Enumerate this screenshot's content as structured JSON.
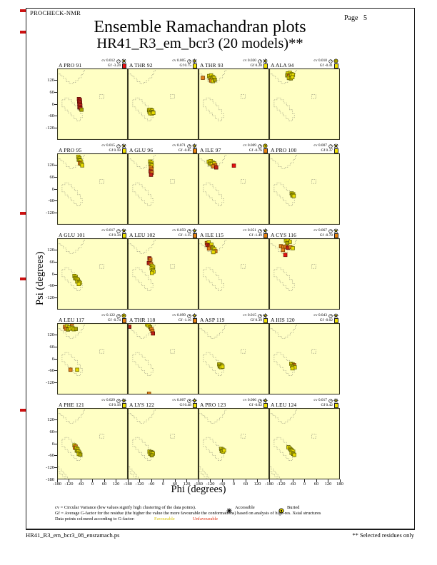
{
  "header": {
    "program": "PROCHECK-NMR",
    "page": "Page 5",
    "title": "Ensemble Ramachandran plots",
    "subtitle": "HR41_R3_em_bcr3 (20 models)**"
  },
  "axes": {
    "xlabel": "Phi (degrees)",
    "ylabel": "Psi (degrees)"
  },
  "legend": {
    "line1": "cv = Circular Variance (low values signify high clustering of the data points).",
    "accessible_label": "Accessible",
    "buried_label": "Buried",
    "line2": "Gf = Average G-factor for the residue (the higher the value the more favourable the conformations)  based on analysis of high-res. Xstal structures",
    "line3": "Data points coloured according to G-factor:",
    "favourable_label": "Favourable",
    "unfavourable_label": "Unfavourable"
  },
  "footer": {
    "filename": "HR41_R3_em_bcr3_08_ensramach.ps",
    "note": "** Selected residues only"
  },
  "chart_data": {
    "type": "scatter",
    "grid": {
      "rows": 5,
      "cols": 4
    },
    "xlim": [
      -180,
      180
    ],
    "ylim": [
      -180,
      180
    ],
    "cv_label": "cv",
    "gf_label": "Gf",
    "plot_bg": "#ffffc4",
    "point_colors": {
      "y": "#e6da00",
      "d": "#a9a400",
      "o": "#e2801a",
      "r": "#c22018",
      "R": "#e81010"
    },
    "marker_colors": {
      "yellow": "#f2e300",
      "orange": "#e8820e",
      "red": "#ee1111"
    },
    "y_tick_labels": [
      "120",
      "60",
      "0",
      "-60",
      "-120"
    ],
    "y_bottom_label": "-180",
    "x_tick_labels": [
      "-180",
      "-120",
      "-60",
      "0",
      "60",
      "120"
    ],
    "x_last_label": "180",
    "subplots": [
      {
        "label": "A PRO 91",
        "cv": "0.012",
        "gf": "-3.24",
        "access": "accessible",
        "gf_marker": "red",
        "points": [
          [
            -69,
            26,
            "r"
          ],
          [
            -64,
            21,
            "r"
          ],
          [
            -68,
            13,
            "r"
          ],
          [
            -63,
            7,
            "r"
          ],
          [
            -67,
            -1,
            "r"
          ],
          [
            -62,
            -7,
            "r"
          ],
          [
            -66,
            -15,
            "r"
          ],
          [
            -61,
            -21,
            "r"
          ],
          [
            -56,
            -28,
            "d"
          ]
        ]
      },
      {
        "label": "A THR 92",
        "cv": "0.005",
        "gf": "0.75",
        "access": "accessible",
        "gf_marker": "yellow",
        "points": [
          [
            -72,
            -30,
            "y"
          ],
          [
            -64,
            -28,
            "y"
          ],
          [
            -56,
            -32,
            "y"
          ],
          [
            -70,
            -38,
            "y"
          ],
          [
            -62,
            -38,
            "d"
          ],
          [
            -54,
            -41,
            "y"
          ],
          [
            -66,
            -46,
            "y"
          ],
          [
            -58,
            -48,
            "y"
          ],
          [
            -50,
            -44,
            "y"
          ]
        ]
      },
      {
        "label": "A THR 93",
        "cv": "0.020",
        "gf": "0.28",
        "access": "accessible",
        "gf_marker": "yellow",
        "points": [
          [
            -158,
            133,
            "o"
          ],
          [
            -126,
            142,
            "y"
          ],
          [
            -116,
            145,
            "y"
          ],
          [
            -108,
            138,
            "y"
          ],
          [
            -120,
            131,
            "d"
          ],
          [
            -110,
            127,
            "y"
          ],
          [
            -101,
            132,
            "y"
          ],
          [
            -116,
            119,
            "o"
          ],
          [
            -106,
            117,
            "y"
          ],
          [
            -97,
            123,
            "d"
          ]
        ]
      },
      {
        "label": "A ALA 94",
        "cv": "0.010",
        "gf": "-0.41",
        "access": "buried",
        "gf_marker": "yellow",
        "points": [
          [
            -85,
            155,
            "y"
          ],
          [
            -75,
            158,
            "y"
          ],
          [
            -66,
            152,
            "y"
          ],
          [
            -88,
            145,
            "d"
          ],
          [
            -78,
            142,
            "o"
          ],
          [
            -68,
            144,
            "y"
          ],
          [
            -59,
            148,
            "y"
          ],
          [
            -80,
            133,
            "y"
          ],
          [
            -70,
            130,
            "d"
          ],
          [
            -62,
            136,
            "y"
          ]
        ]
      },
      {
        "label": "A PRO 95",
        "cv": "0.015",
        "gf": "0.18",
        "access": "accessible",
        "gf_marker": "yellow",
        "points": [
          [
            -72,
            163,
            "y"
          ],
          [
            -66,
            156,
            "y"
          ],
          [
            -70,
            148,
            "d"
          ],
          [
            -62,
            144,
            "y"
          ],
          [
            -58,
            136,
            "y"
          ],
          [
            -64,
            130,
            "o"
          ],
          [
            -56,
            126,
            "y"
          ],
          [
            -52,
            119,
            "y"
          ]
        ]
      },
      {
        "label": "A GLU 96",
        "cv": "0.071",
        "gf": "-0.85",
        "access": "accessible",
        "gf_marker": "orange",
        "points": [
          [
            -66,
            139,
            "y"
          ],
          [
            -59,
            133,
            "y"
          ],
          [
            -64,
            125,
            "d"
          ],
          [
            -58,
            118,
            "y"
          ],
          [
            -63,
            108,
            "o"
          ],
          [
            -59,
            99,
            "o"
          ],
          [
            -64,
            89,
            "r"
          ],
          [
            -58,
            82,
            "o"
          ],
          [
            -62,
            72,
            "r"
          ]
        ]
      },
      {
        "label": "A ILE 97",
        "cv": "0.069",
        "gf": "-0.76",
        "access": "buried",
        "gf_marker": "orange",
        "points": [
          [
            -128,
            138,
            "y"
          ],
          [
            -118,
            141,
            "y"
          ],
          [
            -108,
            134,
            "y"
          ],
          [
            -122,
            128,
            "d"
          ],
          [
            -112,
            126,
            "y"
          ],
          [
            -100,
            130,
            "y"
          ],
          [
            -95,
            121,
            "o"
          ],
          [
            -105,
            115,
            "o"
          ],
          [
            -90,
            109,
            "r"
          ],
          [
            0,
            118,
            "R"
          ]
        ]
      },
      {
        "label": "A PRO 100",
        "cv": "0.007",
        "gf": "0.37",
        "access": "accessible",
        "gf_marker": "yellow",
        "points": [
          [
            -65,
            -22,
            "y"
          ],
          [
            -58,
            -26,
            "y"
          ],
          [
            -62,
            -32,
            "d"
          ],
          [
            -55,
            -35,
            "y"
          ]
        ]
      },
      {
        "label": "A GLU 101",
        "cv": "0.017",
        "gf": "0.34",
        "access": "accessible",
        "gf_marker": "yellow",
        "points": [
          [
            -92,
            -10,
            "y"
          ],
          [
            -85,
            -15,
            "y"
          ],
          [
            -88,
            -22,
            "d"
          ],
          [
            -80,
            -25,
            "y"
          ],
          [
            -74,
            -30,
            "y"
          ],
          [
            -78,
            -38,
            "y"
          ],
          [
            -70,
            -40,
            "d"
          ],
          [
            -64,
            -45,
            "y"
          ],
          [
            -70,
            -51,
            "y"
          ]
        ]
      },
      {
        "label": "A LEU 102",
        "cv": "0.059",
        "gf": "-1.15",
        "access": "accessible",
        "gf_marker": "orange",
        "points": [
          [
            -70,
            79,
            "r"
          ],
          [
            -65,
            72,
            "o"
          ],
          [
            -69,
            63,
            "o"
          ],
          [
            -73,
            55,
            "r"
          ],
          [
            -62,
            50,
            "o"
          ],
          [
            -57,
            41,
            "y"
          ],
          [
            -51,
            35,
            "y"
          ],
          [
            -59,
            28,
            "y"
          ],
          [
            -53,
            20,
            "d"
          ],
          [
            -49,
            12,
            "y"
          ],
          [
            -57,
            5,
            "y"
          ]
        ]
      },
      {
        "label": "A ILE 115",
        "cv": "0.051",
        "gf": "-1.49",
        "access": "accessible",
        "gf_marker": "orange",
        "points": [
          [
            -138,
            156,
            "o"
          ],
          [
            -128,
            159,
            "y"
          ],
          [
            -135,
            146,
            "r"
          ],
          [
            -124,
            143,
            "r"
          ],
          [
            -114,
            148,
            "y"
          ],
          [
            -117,
            135,
            "o"
          ],
          [
            -107,
            132,
            "d"
          ],
          [
            -127,
            128,
            "o"
          ],
          [
            -99,
            125,
            "y"
          ],
          [
            -94,
            115,
            "o"
          ],
          [
            -104,
            110,
            "y"
          ]
        ]
      },
      {
        "label": "A CYS 116",
        "cv": "0.067",
        "gf": "-0.78",
        "access": "accessible",
        "gf_marker": "orange",
        "points": [
          [
            -95,
            168,
            "y"
          ],
          [
            -85,
            170,
            "y"
          ],
          [
            -75,
            162,
            "y"
          ],
          [
            -88,
            156,
            "d"
          ],
          [
            -120,
            140,
            "o"
          ],
          [
            -108,
            135,
            "o"
          ],
          [
            -96,
            138,
            "o"
          ],
          [
            -85,
            132,
            "r"
          ],
          [
            -72,
            135,
            "o"
          ],
          [
            -60,
            130,
            "y"
          ],
          [
            -110,
            121,
            "o"
          ],
          [
            -98,
            96,
            "R"
          ]
        ]
      },
      {
        "label": "A LEU 117",
        "cv": "0.122",
        "gf": "-0.74",
        "access": "buried",
        "gf_marker": "orange",
        "points": [
          [
            -105,
            177,
            "o"
          ],
          [
            -140,
            162,
            "o"
          ],
          [
            -130,
            165,
            "y"
          ],
          [
            -120,
            158,
            "y"
          ],
          [
            -135,
            152,
            "o"
          ],
          [
            -125,
            148,
            "d"
          ],
          [
            -112,
            152,
            "y"
          ],
          [
            -102,
            156,
            "y"
          ],
          [
            -95,
            149,
            "y"
          ],
          [
            -85,
            151,
            "d"
          ],
          [
            -112,
            -55,
            "o"
          ],
          [
            -78,
            -55,
            "y"
          ]
        ]
      },
      {
        "label": "A THR 118",
        "cv": "0.099",
        "gf": "-1.16",
        "access": "accessible",
        "gf_marker": "orange",
        "points": [
          [
            -172,
            162,
            "r"
          ],
          [
            -82,
            174,
            "y"
          ],
          [
            -74,
            168,
            "y"
          ],
          [
            -66,
            160,
            "d"
          ],
          [
            -60,
            150,
            "o"
          ],
          [
            -55,
            140,
            "o"
          ],
          [
            -52,
            128,
            "r"
          ],
          [
            -72,
            -176,
            "o"
          ]
        ]
      },
      {
        "label": "A ASP 119",
        "cv": "0.015",
        "gf": "0.39",
        "access": "accessible",
        "gf_marker": "yellow",
        "points": [
          [
            -75,
            -28,
            "y"
          ],
          [
            -68,
            -30,
            "y"
          ],
          [
            -61,
            -34,
            "y"
          ],
          [
            -72,
            -38,
            "d"
          ],
          [
            -65,
            -42,
            "y"
          ],
          [
            -58,
            -40,
            "y"
          ]
        ]
      },
      {
        "label": "A HIS 120",
        "cv": "0.043",
        "gf": "-0.02",
        "access": "accessible",
        "gf_marker": "yellow",
        "points": [
          [
            -68,
            -25,
            "y"
          ],
          [
            -60,
            -28,
            "y"
          ],
          [
            -53,
            -32,
            "o"
          ],
          [
            -64,
            -36,
            "y"
          ],
          [
            -57,
            -40,
            "d"
          ],
          [
            -50,
            -43,
            "y"
          ],
          [
            -62,
            -48,
            "y"
          ]
        ]
      },
      {
        "label": "A PHE 121",
        "cv": "0.029",
        "gf": "0.18",
        "access": "accessible",
        "gf_marker": "yellow",
        "points": [
          [
            -92,
            -8,
            "y"
          ],
          [
            -86,
            -14,
            "o"
          ],
          [
            -90,
            -20,
            "o"
          ],
          [
            -82,
            -22,
            "y"
          ],
          [
            -76,
            -28,
            "y"
          ],
          [
            -80,
            -35,
            "d"
          ],
          [
            -72,
            -38,
            "y"
          ],
          [
            -66,
            -45,
            "y"
          ],
          [
            -70,
            -52,
            "y"
          ],
          [
            -62,
            -55,
            "d"
          ]
        ]
      },
      {
        "label": "A LYS 122",
        "cv": "0.007",
        "gf": "0.48",
        "access": "accessible",
        "gf_marker": "yellow",
        "points": [
          [
            -70,
            -40,
            "y"
          ],
          [
            -62,
            -42,
            "y"
          ],
          [
            -55,
            -45,
            "d"
          ],
          [
            -67,
            -50,
            "y"
          ],
          [
            -60,
            -52,
            "y"
          ],
          [
            -52,
            -50,
            "y"
          ],
          [
            -58,
            -58,
            "d"
          ]
        ]
      },
      {
        "label": "A PRO 123",
        "cv": "0.006",
        "gf": "-0.02",
        "access": "accessible",
        "gf_marker": "yellow",
        "points": [
          [
            -64,
            -26,
            "y"
          ],
          [
            -57,
            -30,
            "y"
          ],
          [
            -62,
            -36,
            "d"
          ],
          [
            -55,
            -40,
            "y"
          ],
          [
            -50,
            -34,
            "y"
          ]
        ]
      },
      {
        "label": "A LEU 124",
        "cv": "0.017",
        "gf": "0.42",
        "access": "accessible",
        "gf_marker": "yellow",
        "points": [
          [
            -82,
            -18,
            "y"
          ],
          [
            -75,
            -24,
            "y"
          ],
          [
            -70,
            -30,
            "d"
          ],
          [
            -64,
            -34,
            "y"
          ],
          [
            -58,
            -40,
            "y"
          ],
          [
            -66,
            -46,
            "y"
          ],
          [
            -58,
            -51,
            "d"
          ],
          [
            -52,
            -56,
            "y"
          ]
        ]
      }
    ]
  }
}
